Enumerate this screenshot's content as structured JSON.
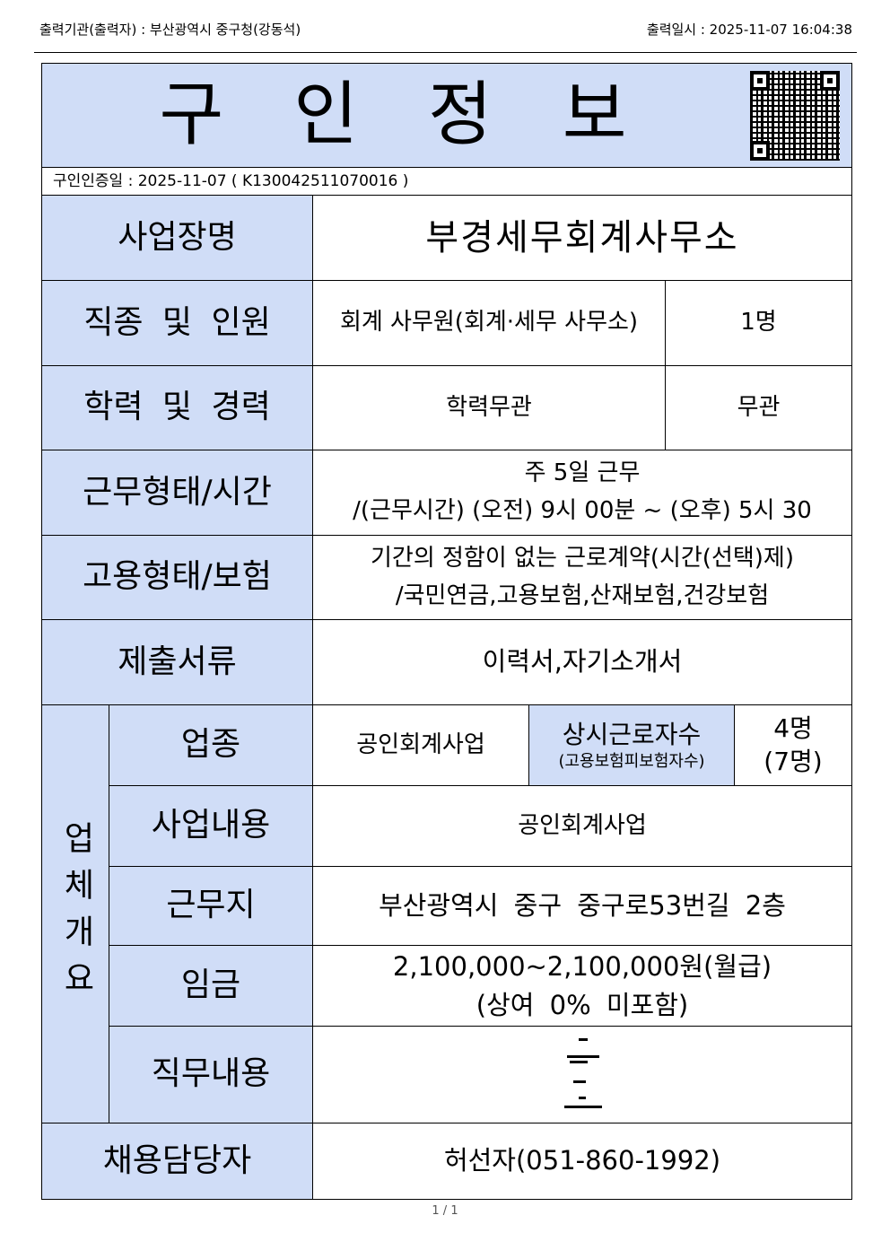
{
  "header": {
    "issuer": "출력기관(출력자) : 부산광역시 중구청(강동석)",
    "printed_at": "출력일시 : 2025-11-07 16:04:38"
  },
  "title": "구　인　정　보",
  "cert": "구인인증일 : 2025-11-07 ( K130042511070016 )",
  "rows": {
    "company": {
      "label": "사업장명",
      "value": "부경세무회계사무소"
    },
    "job": {
      "label": "직종 및 인원",
      "value": "회계 사무원(회계·세무 사무소)",
      "count": "1명"
    },
    "edu": {
      "label": "학력 및 경력",
      "value": "학력무관",
      "career": "무관"
    },
    "work": {
      "label": "근무형태/시간",
      "line1": "주 5일 근무",
      "line2": "/(근무시간) (오전) 9시 00분 ~ (오후) 5시 30"
    },
    "emp": {
      "label": "고용형태/보험",
      "line1": "기간의 정함이 없는 근로계약(시간(선택)제)",
      "line2": "/국민연금,고용보험,산재보험,건강보험"
    },
    "docs": {
      "label": "제출서류",
      "value": "이력서,자기소개서"
    }
  },
  "overview": {
    "label": "업체개요",
    "industry": {
      "label": "업종",
      "value": "공인회계사업",
      "workers_label": "상시근로자수",
      "workers_sub": "(고용보험피보험자수)",
      "workers": "4명",
      "workers_insured": "(7명)"
    },
    "business": {
      "label": "사업내용",
      "value": "공인회계사업"
    },
    "location": {
      "label": "근무지",
      "value": "부산광역시 중구 중구로53번길 2층"
    },
    "wage": {
      "label": "임금",
      "line1": "2,100,000~2,100,000원(월급)",
      "line2": "(상여 0% 미포함)"
    },
    "duty": {
      "label": "직무내용"
    }
  },
  "contact": {
    "label": "채용담당자",
    "value": "허선자(051-860-1992)"
  },
  "page": "1 / 1"
}
